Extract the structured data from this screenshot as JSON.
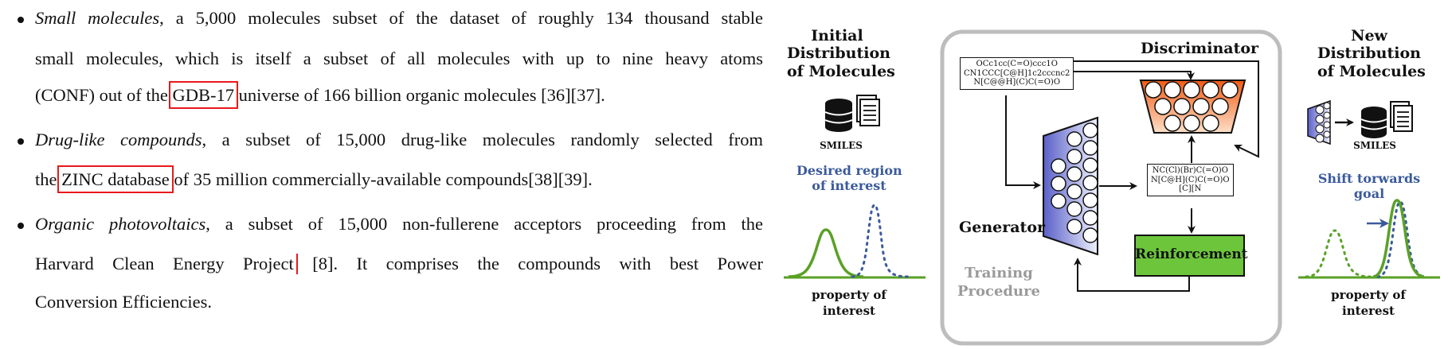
{
  "bullets": [
    {
      "lines": [
        {
          "segments": [
            {
              "t": "Small molecules",
              "italic": true
            },
            {
              "t": ", a 5,000 molecules subset of the dataset of roughly 134 thousand stable"
            }
          ]
        },
        {
          "segments": [
            {
              "t": "small molecules, which is itself a subset of all molecules with up to nine heavy atoms"
            }
          ]
        },
        {
          "segments": [
            {
              "t": "(CONF) out of the "
            },
            {
              "t": "GDB-17",
              "boxed": true
            },
            {
              "t": " universe of 166 billion organic molecules [36][37]."
            }
          ]
        }
      ]
    },
    {
      "lines": [
        {
          "segments": [
            {
              "t": "Drug-like compounds",
              "italic": true
            },
            {
              "t": ", a subset of 15,000 drug-like molecules randomly selected from"
            }
          ]
        },
        {
          "segments": [
            {
              "t": "the "
            },
            {
              "t": "ZINC database",
              "boxed": true
            },
            {
              "t": " of 35 million commercially-available compounds[38][39]."
            }
          ]
        }
      ]
    },
    {
      "lines": [
        {
          "segments": [
            {
              "t": "Organic photovoltaics",
              "italic": true
            },
            {
              "t": ", a subset of 15,000 non-fullerene acceptors proceeding from the"
            }
          ]
        },
        {
          "segments": [
            {
              "t": "Harvard Clean Energy Project",
              "boxed": true
            },
            {
              "t": " [8].  It comprises the compounds with best Power"
            }
          ]
        },
        {
          "segments": [
            {
              "t": "Conversion Efficiencies."
            }
          ]
        }
      ]
    }
  ],
  "figure": {
    "initial_title": [
      "Initial",
      "Distribution",
      "of Molecules"
    ],
    "smiles_label": "SMILES",
    "desired_region": [
      "Desired region",
      "of interest"
    ],
    "property_label": [
      "property of",
      "interest"
    ],
    "input_smiles": [
      "OCc1cc(C=O)ccc1O",
      "CN1CCC[C@H]1c2cccnc2",
      "N[C@@H](C)C(=O)O"
    ],
    "output_smiles": [
      "NC(Cl)(Br)C(=O)O",
      "N[C@H](C)C(=O)O",
      "[C][N"
    ],
    "discriminator_label": "Discriminator",
    "generator_label": "Generator",
    "reinforcement_label": "Reinforcement",
    "training_label": [
      "Training",
      "Procedure"
    ],
    "new_title": [
      "New",
      "Distribution",
      "of Molecules"
    ],
    "new_smiles_label": "SMILES",
    "shift_label": [
      "Shift torwards",
      "goal"
    ],
    "new_property_label": [
      "property of",
      "interest"
    ],
    "colors": {
      "accent_blue": "#3a5a9c",
      "curve_green": "#5aa126",
      "reinforcement_fill": "#6cc53a",
      "discriminator_orange": "#f06a22",
      "generator_blue": "#6a6fcf",
      "frame_gray": "#bdbdbd",
      "highlight_red": "#e8191b"
    }
  }
}
